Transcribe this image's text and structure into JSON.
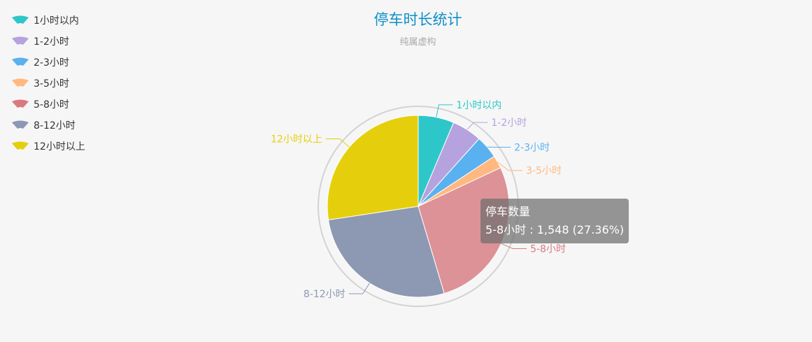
{
  "chart_data": {
    "type": "pie",
    "title": "停车时长统计",
    "subtitle": "纯属虚构",
    "series_name": "停车数量",
    "categories": [
      "1小时以内",
      "1-2小时",
      "2-3小时",
      "3-5小时",
      "5-8小时",
      "8-12小时",
      "12小时以上"
    ],
    "values": [
      360,
      300,
      230,
      130,
      1548,
      1540,
      1550
    ],
    "colors": [
      "#2ec7c9",
      "#b6a2de",
      "#5ab1ef",
      "#ffb980",
      "#d87a80",
      "#8d98b3",
      "#e5cf0d"
    ],
    "legend_position": "top-left",
    "tooltip": {
      "title": "停车数量",
      "text": "5-8小时 : 1,548 (27.36%)"
    }
  }
}
